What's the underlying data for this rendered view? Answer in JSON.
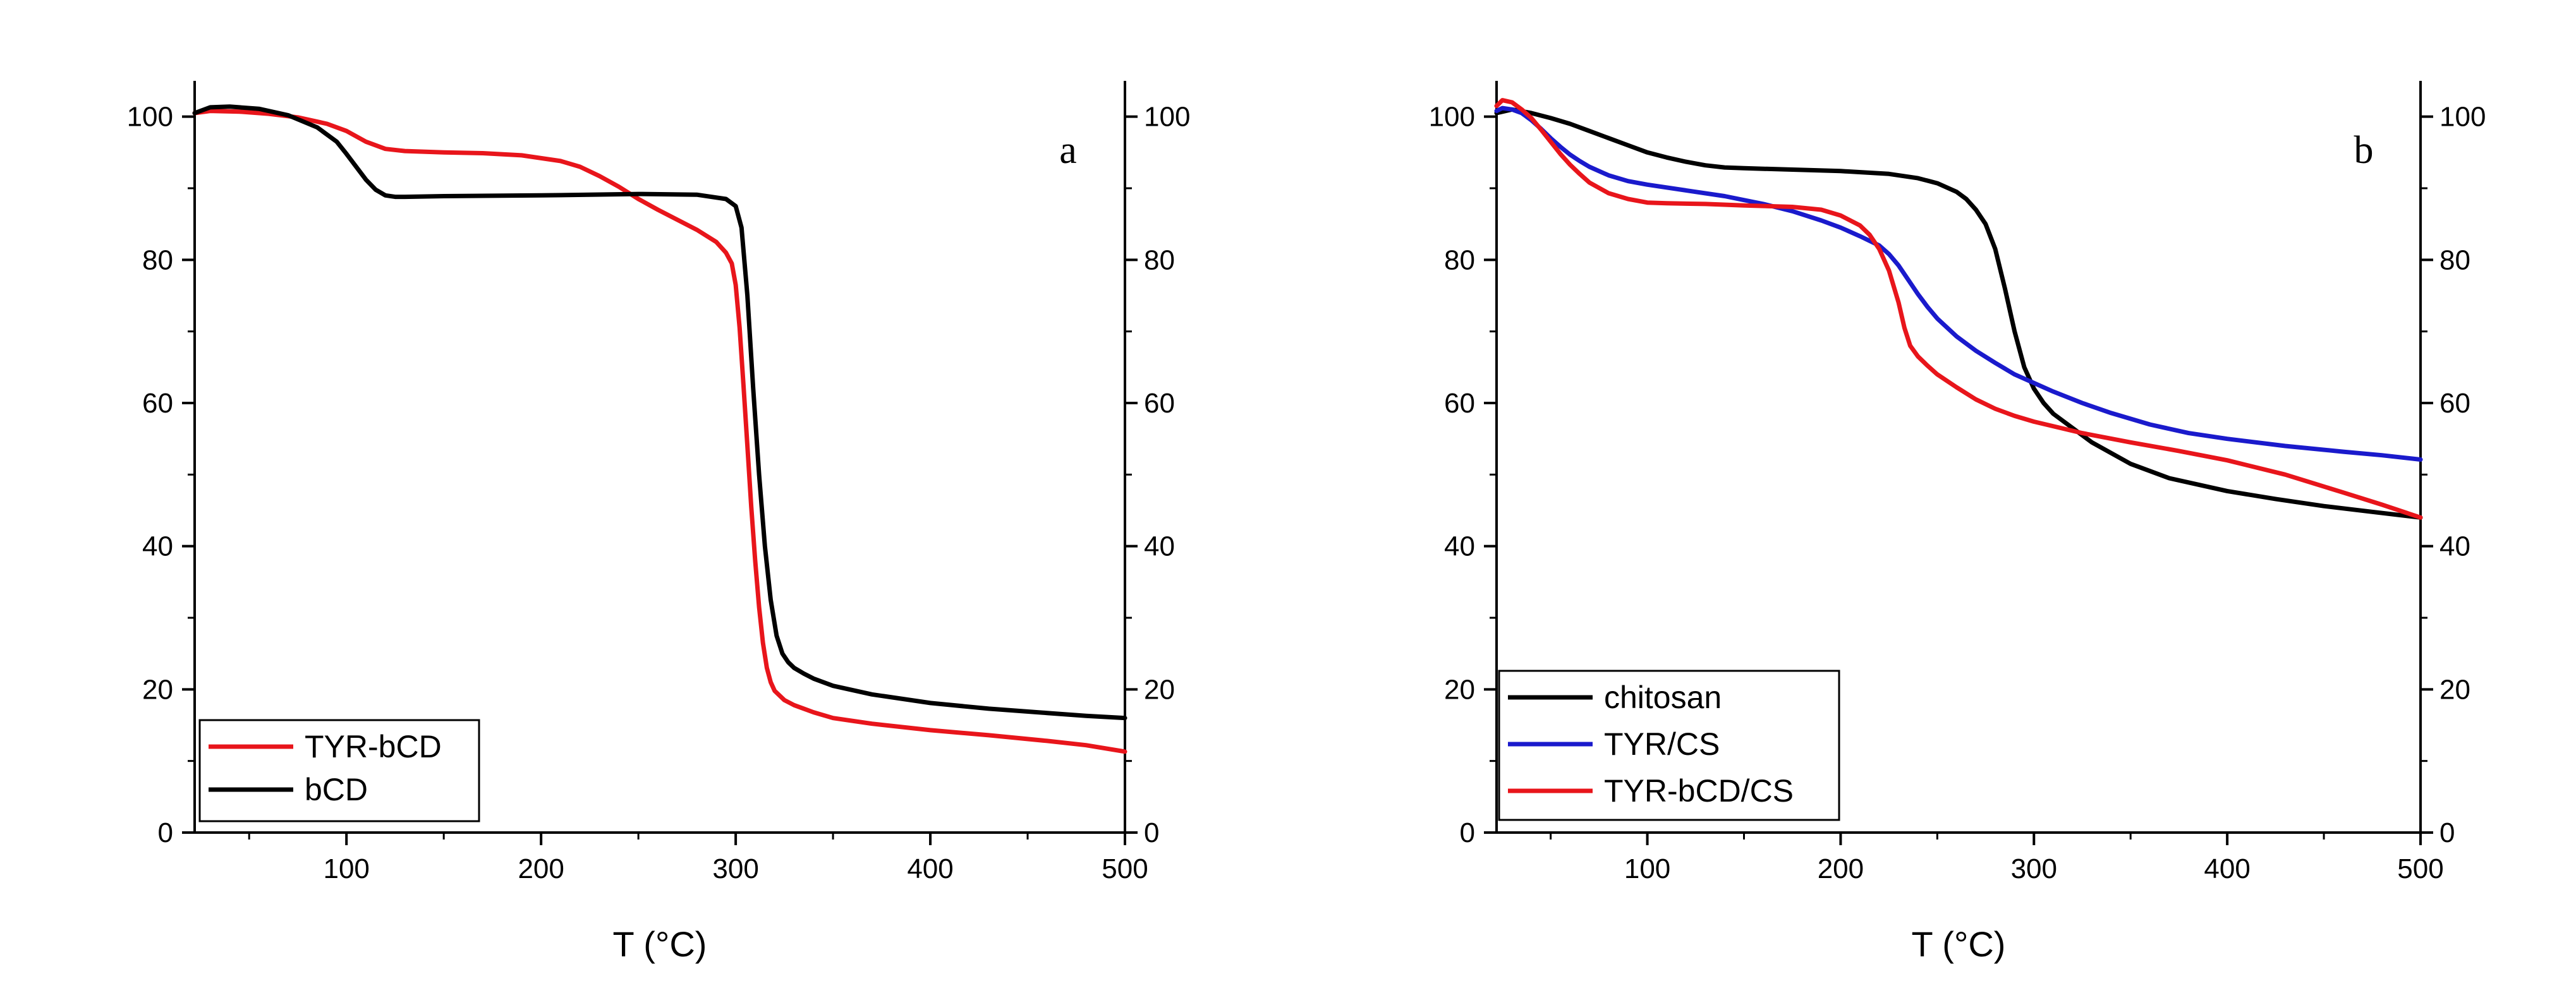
{
  "chart_data": [
    {
      "type": "line",
      "panel_label": "a",
      "xlabel": "T (°C)",
      "ylabel": "",
      "xlim": [
        22,
        500
      ],
      "ylim": [
        0,
        105
      ],
      "xticks": [
        100,
        200,
        300,
        400,
        500
      ],
      "yticks": [
        0,
        20,
        40,
        60,
        80,
        100
      ],
      "right_yticks": [
        0,
        20,
        40,
        60,
        80,
        100
      ],
      "grid": false,
      "legend_position": "bottom-left",
      "series": [
        {
          "name": "TYR-bCD",
          "color": "#e8151b",
          "x": [
            22,
            30,
            45,
            60,
            75,
            90,
            100,
            110,
            120,
            130,
            150,
            170,
            190,
            210,
            220,
            230,
            240,
            250,
            260,
            270,
            280,
            290,
            295,
            298,
            300,
            302,
            304,
            306,
            308,
            310,
            312,
            314,
            316,
            318,
            320,
            325,
            330,
            340,
            350,
            370,
            400,
            430,
            460,
            480,
            500
          ],
          "values": [
            100.5,
            100.8,
            100.7,
            100.4,
            99.9,
            99.0,
            98.0,
            96.5,
            95.5,
            95.2,
            95.0,
            94.9,
            94.6,
            93.8,
            93.0,
            91.7,
            90.2,
            88.5,
            87.0,
            85.6,
            84.2,
            82.5,
            81.0,
            79.5,
            76.5,
            70.5,
            62.5,
            54.0,
            45.5,
            38.0,
            31.5,
            26.5,
            23.0,
            21.0,
            19.8,
            18.5,
            17.8,
            16.8,
            16.0,
            15.2,
            14.3,
            13.6,
            12.8,
            12.2,
            11.3
          ]
        },
        {
          "name": "bCD",
          "color": "#000000",
          "x": [
            22,
            30,
            40,
            55,
            70,
            85,
            95,
            100,
            105,
            110,
            115,
            120,
            125,
            130,
            150,
            200,
            250,
            280,
            295,
            300,
            303,
            306,
            309,
            312,
            315,
            318,
            321,
            324,
            327,
            330,
            335,
            340,
            350,
            370,
            400,
            430,
            460,
            480,
            500
          ],
          "values": [
            100.5,
            101.3,
            101.4,
            101.1,
            100.2,
            98.5,
            96.5,
            94.8,
            93.0,
            91.2,
            89.8,
            89.0,
            88.8,
            88.8,
            88.9,
            89.0,
            89.2,
            89.1,
            88.5,
            87.5,
            84.5,
            75.0,
            62.0,
            50.0,
            40.0,
            32.5,
            27.5,
            25.0,
            23.8,
            23.0,
            22.2,
            21.5,
            20.5,
            19.3,
            18.1,
            17.3,
            16.7,
            16.3,
            16.0
          ]
        }
      ]
    },
    {
      "type": "line",
      "panel_label": "b",
      "xlabel": "T (°C)",
      "ylabel": "",
      "xlim": [
        22,
        500
      ],
      "ylim": [
        0,
        105
      ],
      "xticks": [
        100,
        200,
        300,
        400,
        500
      ],
      "yticks": [
        0,
        20,
        40,
        60,
        80,
        100
      ],
      "right_yticks": [
        0,
        20,
        40,
        60,
        80,
        100
      ],
      "grid": false,
      "legend_position": "bottom-left",
      "series": [
        {
          "name": "chitosan",
          "color": "#000000",
          "x": [
            22,
            30,
            40,
            50,
            60,
            70,
            80,
            90,
            100,
            110,
            120,
            130,
            140,
            150,
            175,
            200,
            225,
            240,
            250,
            260,
            265,
            270,
            275,
            280,
            285,
            290,
            295,
            300,
            305,
            310,
            320,
            330,
            350,
            370,
            400,
            425,
            450,
            475,
            500
          ],
          "values": [
            100.5,
            101.0,
            100.5,
            99.8,
            99.0,
            98.0,
            97.0,
            96.0,
            95.0,
            94.3,
            93.7,
            93.2,
            92.9,
            92.8,
            92.6,
            92.4,
            92.0,
            91.4,
            90.7,
            89.5,
            88.5,
            87.0,
            85.0,
            81.5,
            76.0,
            70.0,
            65.0,
            62.0,
            60.0,
            58.5,
            56.5,
            54.5,
            51.5,
            49.5,
            47.7,
            46.6,
            45.6,
            44.8,
            44.0
          ]
        },
        {
          "name": "TYR/CS",
          "color": "#1a1acc",
          "x": [
            22,
            25,
            30,
            35,
            40,
            45,
            50,
            55,
            60,
            65,
            70,
            80,
            90,
            100,
            120,
            140,
            160,
            175,
            190,
            200,
            210,
            220,
            225,
            230,
            235,
            240,
            245,
            250,
            260,
            270,
            280,
            290,
            300,
            310,
            325,
            340,
            360,
            380,
            400,
            430,
            460,
            480,
            500
          ],
          "values": [
            100.8,
            101.2,
            101.0,
            100.5,
            99.5,
            98.3,
            97.0,
            95.8,
            94.7,
            93.8,
            93.0,
            91.8,
            91.0,
            90.5,
            89.7,
            88.9,
            87.8,
            86.8,
            85.5,
            84.5,
            83.3,
            82.0,
            80.8,
            79.2,
            77.2,
            75.2,
            73.4,
            71.8,
            69.3,
            67.3,
            65.6,
            64.0,
            62.8,
            61.6,
            60.0,
            58.6,
            57.0,
            55.8,
            55.0,
            54.0,
            53.2,
            52.7,
            52.1
          ]
        },
        {
          "name": "TYR-bCD/CS",
          "color": "#e8151b",
          "x": [
            22,
            25,
            30,
            35,
            40,
            45,
            50,
            55,
            60,
            65,
            70,
            80,
            90,
            100,
            110,
            130,
            150,
            175,
            190,
            200,
            210,
            215,
            220,
            225,
            230,
            233,
            236,
            240,
            245,
            250,
            260,
            270,
            280,
            290,
            300,
            325,
            350,
            375,
            400,
            430,
            460,
            480,
            500
          ],
          "values": [
            101.5,
            102.3,
            102.0,
            101.0,
            99.8,
            98.2,
            96.5,
            94.8,
            93.3,
            92.0,
            90.8,
            89.3,
            88.5,
            88.0,
            87.9,
            87.8,
            87.6,
            87.4,
            87.0,
            86.2,
            84.8,
            83.5,
            81.5,
            78.5,
            74.0,
            70.5,
            68.0,
            66.5,
            65.2,
            64.0,
            62.2,
            60.5,
            59.2,
            58.2,
            57.4,
            55.8,
            54.5,
            53.3,
            52.0,
            50.0,
            47.5,
            45.8,
            44.0
          ]
        }
      ]
    }
  ]
}
